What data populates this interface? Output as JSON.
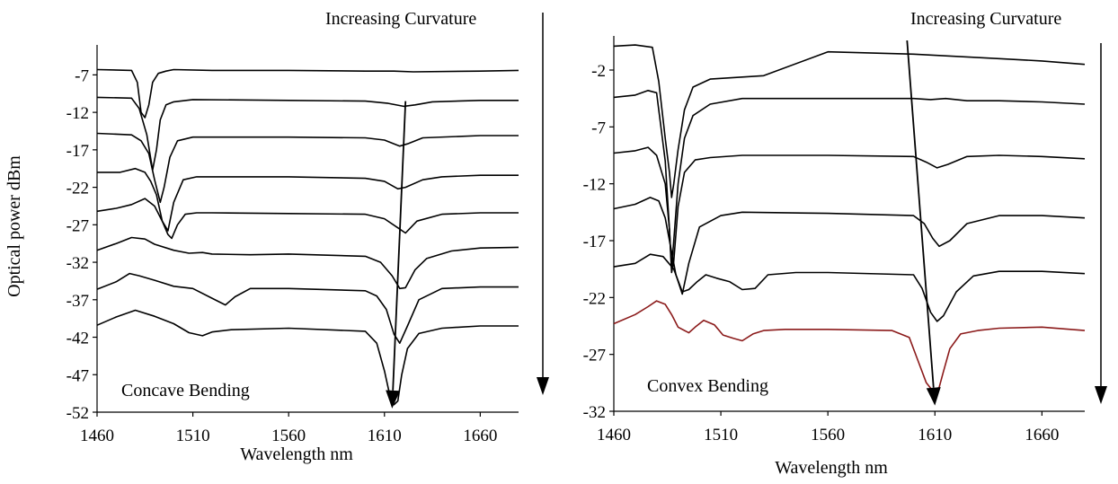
{
  "chart_data": [
    {
      "type": "line",
      "title": "",
      "annotation": "Concave Bending",
      "curvature_label": "Increasing Curvature",
      "xlabel": "Wavelength nm",
      "ylabel": "Optical power dBm",
      "xlim": [
        1460,
        1680
      ],
      "ylim": [
        -52,
        -3
      ],
      "xticks": [
        1460,
        1510,
        1560,
        1610,
        1660
      ],
      "yticks": [
        -7,
        -12,
        -17,
        -22,
        -27,
        -32,
        -37,
        -42,
        -47,
        -52
      ],
      "grid": false,
      "colors": {
        "trace": "#000000"
      },
      "series": [
        {
          "x": [
            1460,
            1478,
            1481,
            1483,
            1485,
            1487,
            1489,
            1492,
            1496,
            1500,
            1520,
            1560,
            1600,
            1615,
            1625,
            1660,
            1680
          ],
          "values": [
            -6.3,
            -6.4,
            -8,
            -12,
            -12.7,
            -11,
            -8,
            -6.8,
            -6.5,
            -6.3,
            -6.4,
            -6.4,
            -6.5,
            -6.5,
            -6.6,
            -6.5,
            -6.4
          ]
        },
        {
          "x": [
            1460,
            1478,
            1482,
            1486,
            1489,
            1491,
            1493,
            1496,
            1500,
            1510,
            1560,
            1600,
            1612,
            1620,
            1626,
            1635,
            1660,
            1680
          ],
          "values": [
            -10,
            -10.1,
            -11.5,
            -15,
            -19.7,
            -17,
            -13,
            -11,
            -10.6,
            -10.3,
            -10.4,
            -10.5,
            -10.8,
            -11.2,
            -11,
            -10.6,
            -10.4,
            -10.4
          ]
        },
        {
          "x": [
            1460,
            1478,
            1483,
            1487,
            1490,
            1493,
            1495,
            1498,
            1502,
            1510,
            1560,
            1600,
            1610,
            1618,
            1622,
            1630,
            1660,
            1680
          ],
          "values": [
            -14.8,
            -15,
            -15.8,
            -17.5,
            -21,
            -24,
            -22,
            -18,
            -15.8,
            -15.3,
            -15.3,
            -15.4,
            -15.7,
            -16.5,
            -16.2,
            -15.4,
            -15.1,
            -15.1
          ]
        },
        {
          "x": [
            1460,
            1472,
            1480,
            1485,
            1488,
            1491,
            1494,
            1497,
            1500,
            1505,
            1512,
            1560,
            1600,
            1610,
            1617,
            1621,
            1630,
            1640,
            1660,
            1680
          ],
          "values": [
            -20,
            -20,
            -19.5,
            -20,
            -21.2,
            -23,
            -26.5,
            -27.8,
            -24,
            -21,
            -20.6,
            -20.6,
            -20.8,
            -21.2,
            -22.2,
            -22,
            -21,
            -20.6,
            -20.4,
            -20.4
          ]
        },
        {
          "x": [
            1460,
            1470,
            1478,
            1485,
            1490,
            1494,
            1497,
            1499,
            1502,
            1506,
            1512,
            1520,
            1560,
            1600,
            1610,
            1617,
            1621,
            1627,
            1640,
            1660,
            1680
          ],
          "values": [
            -25.2,
            -24.8,
            -24.3,
            -23.5,
            -24.5,
            -26.5,
            -28.3,
            -28.8,
            -27,
            -25.6,
            -25.4,
            -25.4,
            -25.5,
            -25.6,
            -26.2,
            -27.4,
            -28.1,
            -26.5,
            -25.6,
            -25.4,
            -25.4
          ]
        },
        {
          "x": [
            1460,
            1470,
            1478,
            1485,
            1490,
            1500,
            1508,
            1515,
            1520,
            1540,
            1560,
            1600,
            1608,
            1614,
            1618,
            1621,
            1626,
            1632,
            1645,
            1660,
            1680
          ],
          "values": [
            -30.4,
            -29.5,
            -28.7,
            -28.9,
            -29.6,
            -30.4,
            -30.8,
            -30.7,
            -30.9,
            -31,
            -30.9,
            -31.2,
            -32,
            -33.8,
            -35.5,
            -35.4,
            -33,
            -31.5,
            -30.5,
            -30.1,
            -30
          ]
        },
        {
          "x": [
            1460,
            1470,
            1477,
            1482,
            1490,
            1500,
            1510,
            1520,
            1527,
            1532,
            1540,
            1560,
            1600,
            1606,
            1611,
            1615,
            1618,
            1622,
            1628,
            1640,
            1660,
            1680
          ],
          "values": [
            -35.6,
            -34.6,
            -33.5,
            -33.8,
            -34.4,
            -35.2,
            -35.5,
            -36.8,
            -37.7,
            -36.6,
            -35.5,
            -35.5,
            -35.8,
            -36.5,
            -38.3,
            -41.6,
            -42.8,
            -40.5,
            -37,
            -35.5,
            -35.3,
            -35.3
          ]
        },
        {
          "x": [
            1460,
            1470,
            1480,
            1490,
            1500,
            1508,
            1515,
            1520,
            1530,
            1560,
            1600,
            1606,
            1610,
            1613,
            1615,
            1617,
            1619,
            1622,
            1628,
            1640,
            1660,
            1680
          ],
          "values": [
            -40.4,
            -39.3,
            -38.4,
            -39.2,
            -40.2,
            -41.4,
            -41.8,
            -41.3,
            -41,
            -40.8,
            -41.2,
            -42.8,
            -46.5,
            -50,
            -51,
            -50.5,
            -47,
            -43.5,
            -41.5,
            -40.8,
            -40.5,
            -40.5
          ]
        }
      ],
      "arrow": {
        "from": [
          1621,
          -10.5
        ],
        "to": [
          1614,
          -51.5
        ]
      }
    },
    {
      "type": "line",
      "title": "",
      "annotation": "Convex Bending",
      "curvature_label": "Increasing Curvature",
      "xlabel": "Wavelength nm",
      "ylabel": "",
      "xlim": [
        1460,
        1680
      ],
      "ylim": [
        -32,
        1
      ],
      "xticks": [
        1460,
        1510,
        1560,
        1610,
        1660
      ],
      "yticks": [
        -2,
        -7,
        -12,
        -17,
        -22,
        -27,
        -32
      ],
      "grid": false,
      "colors": {
        "trace": "#000000",
        "highlight": "#8b1a1a"
      },
      "series": [
        {
          "x": [
            1460,
            1470,
            1478,
            1481,
            1484,
            1486,
            1487,
            1488,
            1490,
            1493,
            1497,
            1505,
            1530,
            1560,
            1600,
            1640,
            1660,
            1680
          ],
          "values": [
            0.1,
            0.2,
            0,
            -3,
            -8,
            -11,
            -13.2,
            -12,
            -9,
            -5.5,
            -3.5,
            -2.8,
            -2.5,
            -0.4,
            -0.6,
            -1,
            -1.2,
            -1.5
          ]
        },
        {
          "x": [
            1460,
            1470,
            1476,
            1480,
            1484,
            1486,
            1487,
            1488,
            1490,
            1493,
            1497,
            1505,
            1520,
            1560,
            1600,
            1608,
            1615,
            1625,
            1640,
            1660,
            1680
          ],
          "values": [
            -4.4,
            -4.2,
            -3.8,
            -4,
            -10,
            -16,
            -19.5,
            -17,
            -12,
            -8,
            -6,
            -5,
            -4.5,
            -4.5,
            -4.5,
            -4.6,
            -4.5,
            -4.7,
            -4.7,
            -4.8,
            -5
          ]
        },
        {
          "x": [
            1460,
            1470,
            1476,
            1480,
            1484,
            1486,
            1487,
            1488,
            1490,
            1493,
            1498,
            1505,
            1520,
            1560,
            1600,
            1606,
            1611,
            1616,
            1625,
            1640,
            1660,
            1680
          ],
          "values": [
            -9.3,
            -9.1,
            -8.8,
            -9.5,
            -12,
            -16,
            -19.8,
            -18.8,
            -14,
            -11,
            -9.9,
            -9.7,
            -9.5,
            -9.5,
            -9.6,
            -10.1,
            -10.6,
            -10.3,
            -9.6,
            -9.5,
            -9.6,
            -9.8
          ]
        },
        {
          "x": [
            1460,
            1470,
            1477,
            1481,
            1484,
            1487,
            1489,
            1492,
            1495,
            1500,
            1510,
            1520,
            1560,
            1600,
            1605,
            1609,
            1612,
            1617,
            1625,
            1640,
            1660,
            1680
          ],
          "values": [
            -14.2,
            -13.8,
            -13.2,
            -13.5,
            -15,
            -18,
            -20,
            -21.7,
            -19,
            -15.8,
            -14.8,
            -14.5,
            -14.6,
            -14.8,
            -15.5,
            -16.8,
            -17.5,
            -17,
            -15.5,
            -14.8,
            -14.8,
            -15
          ]
        },
        {
          "x": [
            1460,
            1470,
            1477,
            1483,
            1488,
            1492,
            1495,
            1499,
            1503,
            1508,
            1514,
            1520,
            1526,
            1532,
            1545,
            1560,
            1600,
            1604,
            1608,
            1611,
            1614,
            1620,
            1628,
            1640,
            1660,
            1680
          ],
          "values": [
            -19.3,
            -19,
            -18.2,
            -18.4,
            -19.5,
            -21.5,
            -21.3,
            -20.6,
            -20,
            -20.3,
            -20.6,
            -21.3,
            -21.2,
            -20,
            -19.8,
            -19.8,
            -20,
            -21.2,
            -23.3,
            -24.1,
            -23.6,
            -21.5,
            -20.1,
            -19.7,
            -19.7,
            -19.9
          ]
        },
        {
          "x": [
            1460,
            1470,
            1476,
            1480,
            1484,
            1487,
            1490,
            1495,
            1498,
            1502,
            1507,
            1511,
            1516,
            1520,
            1525,
            1530,
            1540,
            1560,
            1590,
            1598,
            1602,
            1606,
            1609,
            1612,
            1614,
            1617,
            1622,
            1630,
            1640,
            1660,
            1680
          ],
          "values": [
            -24.3,
            -23.5,
            -22.8,
            -22.3,
            -22.6,
            -23.5,
            -24.6,
            -25.1,
            -24.6,
            -24,
            -24.4,
            -25.3,
            -25.6,
            -25.8,
            -25.2,
            -24.9,
            -24.8,
            -24.8,
            -24.9,
            -25.5,
            -27.5,
            -29.5,
            -30.2,
            -29.9,
            -28.5,
            -26.5,
            -25.2,
            -24.9,
            -24.7,
            -24.6,
            -24.9
          ],
          "highlight": true
        }
      ],
      "arrow": {
        "from": [
          1597,
          0.6
        ],
        "to": [
          1610,
          -31.5
        ]
      }
    }
  ]
}
